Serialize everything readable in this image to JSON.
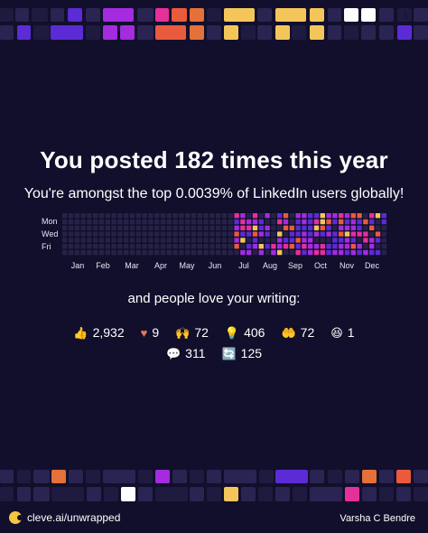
{
  "headline": "You posted 182 times this year",
  "subline": "You're amongst the top 0.0039% of LinkedIn users globally!",
  "heatmap": {
    "day_labels": [
      "Mon",
      "Wed",
      "Fri"
    ],
    "months": [
      "Jan",
      "Feb",
      "Mar",
      "Apr",
      "May",
      "Jun",
      "Jul",
      "Aug",
      "Sep",
      "Oct",
      "Nov",
      "Dec"
    ],
    "colors": {
      "empty": "#262247",
      "low": "#5b2bd6",
      "mid": "#a42bdf",
      "high": "#e5309a",
      "higher": "#ea5a3c",
      "top": "#f4c65a"
    }
  },
  "love_text": "and people love your writing:",
  "stats_row1": [
    {
      "icon": "thumbs-up-icon",
      "glyph": "👍",
      "value": "2,932"
    },
    {
      "icon": "heart-icon",
      "glyph": "♥",
      "value": "9"
    },
    {
      "icon": "celebrate-icon",
      "glyph": "🙌",
      "value": "72"
    },
    {
      "icon": "lightbulb-icon",
      "glyph": "💡",
      "value": "406"
    },
    {
      "icon": "support-icon",
      "glyph": "🤲",
      "value": "72"
    },
    {
      "icon": "funny-icon",
      "glyph": "😆",
      "value": "1"
    }
  ],
  "stats_row2": [
    {
      "icon": "comment-icon",
      "glyph": "💬",
      "value": "311"
    },
    {
      "icon": "repost-icon",
      "glyph": "🔄",
      "value": "125"
    }
  ],
  "footer": {
    "brand_url": "cleve.ai/unwrapped",
    "author": "Varsha C Bendre"
  },
  "decor_colors": [
    "#1f1a3f",
    "#2a2452",
    "#5b2bd6",
    "#a42bdf",
    "#e5309a",
    "#ea5a3c",
    "#e4703a",
    "#f4c65a",
    "#ffffff"
  ]
}
